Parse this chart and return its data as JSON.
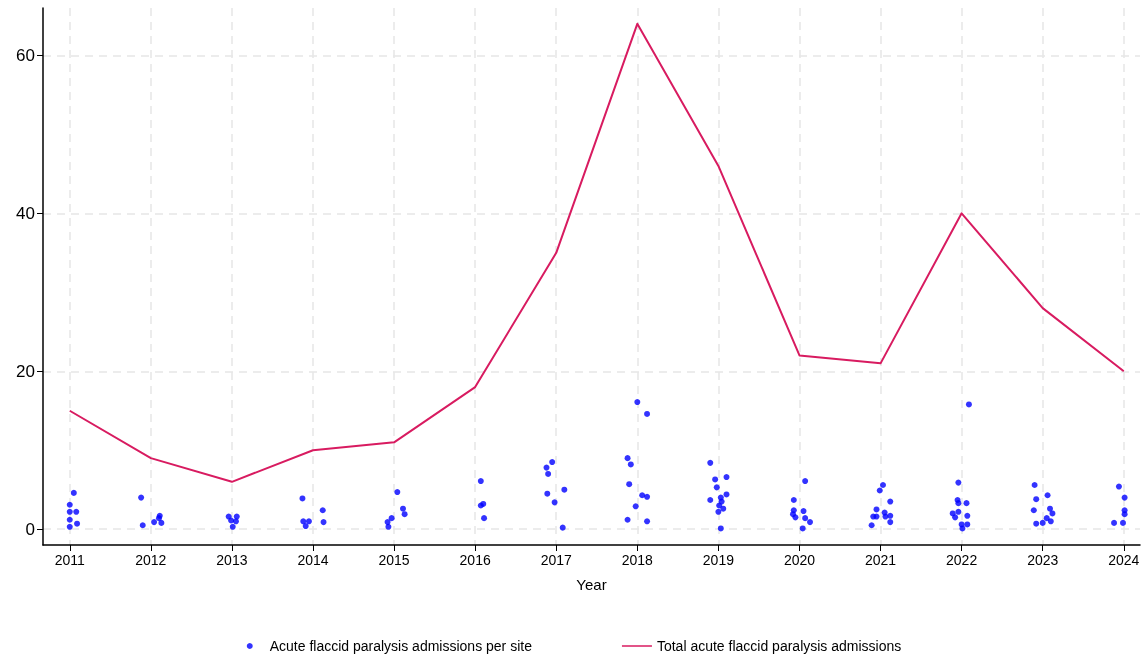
{
  "chart_data": {
    "type": "line",
    "xlabel": "Year",
    "xlim": [
      2010.67,
      2024.2
    ],
    "ylim": [
      -2,
      66
    ],
    "xticks": [
      2011,
      2012,
      2013,
      2014,
      2015,
      2016,
      2017,
      2018,
      2019,
      2020,
      2021,
      2022,
      2023,
      2024
    ],
    "yticks": [
      0,
      20,
      40,
      60
    ],
    "grid": true,
    "legend": "bottom",
    "series": [
      {
        "name": "Acute flaccid paralysis admissions per site",
        "type": "scatter",
        "marker": "circle",
        "color": "#0000ff",
        "x": [
          2011.05,
          2011,
          2011,
          2011.08,
          2011,
          2011.09,
          2011,
          2011.88,
          2011.9,
          2012.04,
          2012.11,
          2012.1,
          2012.13,
          2012.96,
          2013.06,
          2012.99,
          2013.05,
          2013.01,
          2013.87,
          2013.88,
          2013.95,
          2013.91,
          2014.12,
          2014.13,
          2015.04,
          2014.92,
          2014.97,
          2014.93,
          2015.11,
          2015.13,
          2016.07,
          2016.07,
          2016.1,
          2016.11,
          2016.88,
          2016.95,
          2016.9,
          2016.89,
          2016.98,
          2017.1,
          2017.08,
          2018,
          2018.12,
          2017.88,
          2017.92,
          2017.9,
          2018.06,
          2018.12,
          2017.98,
          2017.88,
          2018.12,
          2018.9,
          2018.96,
          2019.1,
          2018.98,
          2019.1,
          2018.9,
          2019.03,
          2019.04,
          2019.01,
          2019.06,
          2019,
          2019.03,
          2020.07,
          2019.93,
          2019.93,
          2020.05,
          2019.92,
          2019.95,
          2020.07,
          2020.13,
          2020.04,
          2021.03,
          2020.99,
          2021.12,
          2020.95,
          2021.05,
          2020.91,
          2020.95,
          2021.06,
          2021.12,
          2021.12,
          2020.89,
          2022.09,
          2021.96,
          2021.95,
          2022.06,
          2021.96,
          2021.89,
          2021.96,
          2021.92,
          2022.07,
          2022,
          2022.07,
          2022.01,
          2022.9,
          2023.06,
          2022.92,
          2022.89,
          2023.09,
          2023.12,
          2023.05,
          2023.1,
          2022.92,
          2023,
          2023.94,
          2024.01,
          2024.01,
          2024.01,
          2023.88,
          2023.99
        ],
        "values": [
          4.6,
          3.1,
          2.2,
          2.2,
          1.2,
          0.7,
          0.3,
          4,
          0.5,
          0.9,
          1.7,
          1.4,
          0.8,
          1.6,
          1.6,
          1.1,
          1,
          0.3,
          3.9,
          1,
          1,
          0.4,
          2.4,
          0.9,
          4.7,
          0.9,
          1.4,
          0.3,
          2.6,
          1.9,
          6.1,
          3,
          3.2,
          1.4,
          7.8,
          8.5,
          7,
          4.5,
          3.4,
          5,
          0.2,
          16.1,
          14.6,
          9,
          8.2,
          5.7,
          4.3,
          4.1,
          2.9,
          1.2,
          1,
          8.4,
          6.3,
          6.6,
          5.3,
          4.4,
          3.7,
          4,
          3.5,
          3,
          2.6,
          2.2,
          0.1,
          6.1,
          3.7,
          2.4,
          2.3,
          1.9,
          1.5,
          1.4,
          0.9,
          0.1,
          5.6,
          4.9,
          3.5,
          2.5,
          2.1,
          1.6,
          1.6,
          1.6,
          1.7,
          0.9,
          0.5,
          15.8,
          5.9,
          3.7,
          3.3,
          3.3,
          2,
          2.2,
          1.5,
          1.7,
          0.6,
          0.6,
          0.1,
          5.6,
          4.3,
          3.8,
          2.4,
          2.6,
          2,
          1.4,
          1,
          0.7,
          0.8,
          5.4,
          4,
          2.4,
          1.9,
          0.8,
          0.8
        ]
      },
      {
        "name": "Total acute flaccid paralysis admissions",
        "color": "#d81b60",
        "x": [
          2011,
          2012,
          2013,
          2014,
          2015,
          2016,
          2017,
          2018,
          2019,
          2020,
          2021,
          2022,
          2023,
          2024
        ],
        "values": [
          15,
          9,
          6,
          10,
          11,
          18,
          35,
          64,
          46,
          22,
          21,
          40,
          28,
          20
        ]
      }
    ]
  }
}
